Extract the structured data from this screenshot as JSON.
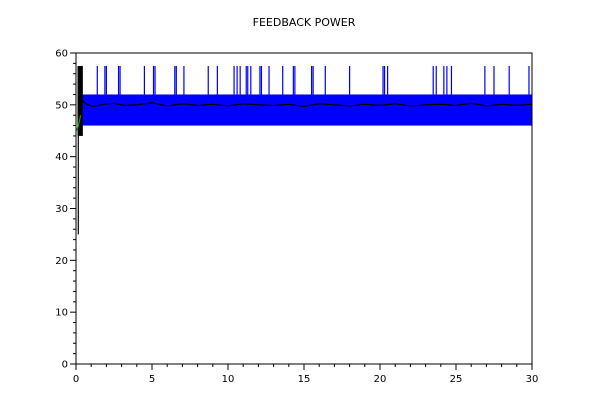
{
  "chart_data": {
    "type": "line",
    "title": "FEEDBACK POWER",
    "xlabel": "",
    "ylabel": "",
    "xlim": [
      0,
      30
    ],
    "ylim": [
      0,
      60
    ],
    "x_ticks": [
      "0",
      "5",
      "10",
      "15",
      "20",
      "25",
      "30"
    ],
    "y_ticks": [
      "0",
      "10",
      "20",
      "30",
      "40",
      "50",
      "60"
    ],
    "grid": false,
    "legend": "none",
    "series": [
      {
        "color": "#0000ff",
        "band_low": 46,
        "band_high": 52,
        "spike_top": 57.5,
        "spike_x": [
          1.4,
          1.9,
          2.0,
          2.8,
          2.9,
          4.5,
          5.1,
          5.2,
          6.5,
          6.6,
          7.1,
          8.7,
          9.3,
          10.4,
          10.6,
          10.8,
          11.2,
          11.3,
          11.5,
          12.1,
          12.2,
          12.7,
          13.6,
          14.3,
          14.4,
          15.5,
          15.6,
          16.4,
          18.0,
          20.2,
          20.3,
          20.5,
          23.5,
          23.7,
          24.2,
          24.4,
          24.7,
          26.9,
          27.5,
          28.5,
          29.8
        ]
      },
      {
        "color": "#000000",
        "x": [
          0.3,
          0.5,
          0.8,
          1.2,
          1.8,
          2.5,
          3.2,
          4.0,
          5.0,
          6.0,
          7.0,
          8.0,
          9.0,
          10.0,
          11.0,
          12.0,
          13.0,
          14.0,
          15.0,
          16.0,
          17.0,
          18.0,
          19.0,
          20.0,
          21.0,
          22.0,
          23.0,
          24.0,
          25.0,
          26.0,
          27.0,
          28.0,
          29.0,
          30.0
        ],
        "y": [
          52,
          50.5,
          50.0,
          49.7,
          50.1,
          50.3,
          49.9,
          50.0,
          50.4,
          49.8,
          50.2,
          49.9,
          50.1,
          49.8,
          50.2,
          50.0,
          49.9,
          50.1,
          49.7,
          50.2,
          50.0,
          49.8,
          50.1,
          49.9,
          50.2,
          49.8,
          50.0,
          50.1,
          49.9,
          50.3,
          49.8,
          50.1,
          49.9,
          50.1
        ]
      },
      {
        "color": "#00aa00",
        "x": [
          0.0,
          0.1,
          0.2,
          0.3
        ],
        "y": [
          45,
          45.5,
          46.5,
          48
        ]
      }
    ]
  }
}
